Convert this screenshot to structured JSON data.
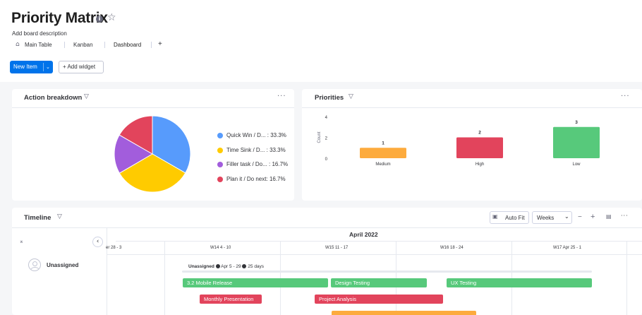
{
  "board": {
    "title": "Priority Matrix",
    "description": "Add board description",
    "tabs": [
      {
        "label": "Main Table"
      },
      {
        "label": "Kanban"
      },
      {
        "label": "Dashboard",
        "active": true
      },
      {
        "label": "+"
      }
    ]
  },
  "toolbar": {
    "new_item_label": "New Item",
    "add_widget_label": "+ Add widget"
  },
  "widgets": {
    "action_breakdown": {
      "title": "Action breakdown",
      "legend": [
        {
          "label": "Quick Win / D...",
          "pct": "33.3%",
          "color": "#579bfc"
        },
        {
          "label": "Time Sink / D...",
          "pct": "33.3%",
          "color": "#ffcb00"
        },
        {
          "label": "Filler task / Do...",
          "pct": "16.7%",
          "color": "#a25ddc"
        },
        {
          "label": "Plan it / Do next",
          "pct": "16.7%",
          "color": "#e2445c"
        }
      ]
    },
    "priorities": {
      "title": "Priorities"
    },
    "timeline": {
      "title": "Timeline",
      "auto_fit_label": "Auto Fit",
      "scale_label": "Weeks",
      "month_label": "April 2022",
      "weeks": [
        "er 28 - 3",
        "W14  4 - 10",
        "W15  11 - 17",
        "W16  18 - 24",
        "W17  Apr 25 - 1"
      ],
      "group_label": "Unassigned",
      "summary_prefix": "Unassigned",
      "summary_dates": "Apr 5 - 29",
      "summary_days": "25 days",
      "tasks": [
        {
          "label": "3.2 Mobile Release",
          "color": "#57c97b"
        },
        {
          "label": "Design Testing",
          "color": "#57c97b"
        },
        {
          "label": "UX Testing",
          "color": "#57c97b"
        },
        {
          "label": "Monthly Presentation",
          "color": "#e2445c"
        },
        {
          "label": "Project Analysis",
          "color": "#e2445c"
        },
        {
          "label": "",
          "color": "#fdab3d"
        }
      ]
    }
  },
  "chart_data": [
    {
      "type": "pie",
      "title": "Action breakdown",
      "categories": [
        "Quick Win / D...",
        "Time Sink / D...",
        "Filler task / Do...",
        "Plan it / Do next"
      ],
      "values": [
        33.3,
        33.3,
        16.7,
        16.7
      ],
      "colors": [
        "#579bfc",
        "#ffcb00",
        "#a25ddc",
        "#e2445c"
      ],
      "legend": "right"
    },
    {
      "type": "bar",
      "title": "Priorities",
      "categories": [
        "Medium",
        "High",
        "Low"
      ],
      "values": [
        1,
        2,
        3
      ],
      "colors": [
        "#fdab3d",
        "#e2445c",
        "#57c97b"
      ],
      "ylabel": "Count",
      "yticks": [
        0,
        2,
        4
      ],
      "ylim": [
        0,
        4
      ],
      "grid": false
    }
  ]
}
